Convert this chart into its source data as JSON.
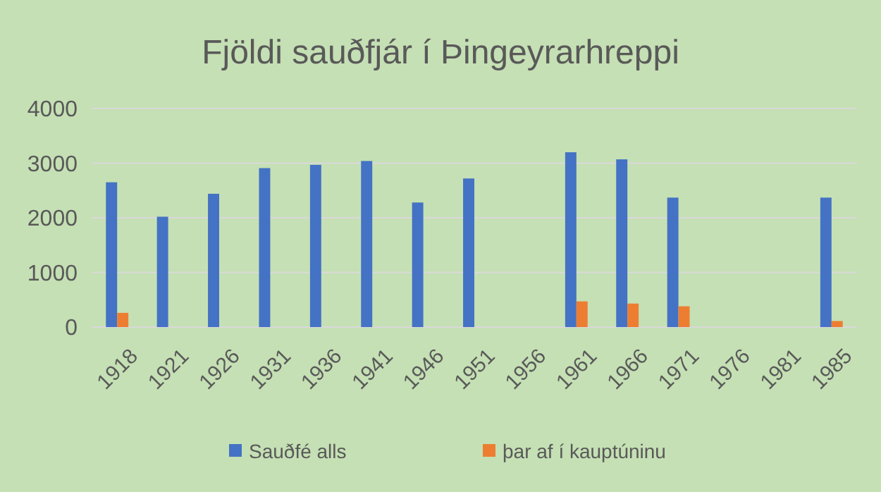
{
  "chart_data": {
    "type": "bar",
    "title": "Fjöldi sauðfjár í Þingeyrarhreppi",
    "categories": [
      "1918",
      "1921",
      "1926",
      "1931",
      "1936",
      "1941",
      "1946",
      "1951",
      "1956",
      "1961",
      "1966",
      "1971",
      "1976",
      "1981",
      "1985"
    ],
    "series": [
      {
        "name": "Sauðfé alls",
        "color": "#4472c4",
        "values": [
          2650,
          2020,
          2440,
          2910,
          2970,
          3040,
          2280,
          2720,
          null,
          3200,
          3070,
          2370,
          null,
          null,
          2370
        ]
      },
      {
        "name": "þar af í kauptúninu",
        "color": "#ed7d31",
        "values": [
          260,
          null,
          null,
          null,
          null,
          null,
          null,
          null,
          null,
          470,
          430,
          380,
          null,
          null,
          110
        ]
      }
    ],
    "ylim": [
      0,
      4000
    ],
    "yticks": [
      0,
      1000,
      2000,
      3000,
      4000
    ],
    "grid": "y",
    "legend": "bottom"
  }
}
